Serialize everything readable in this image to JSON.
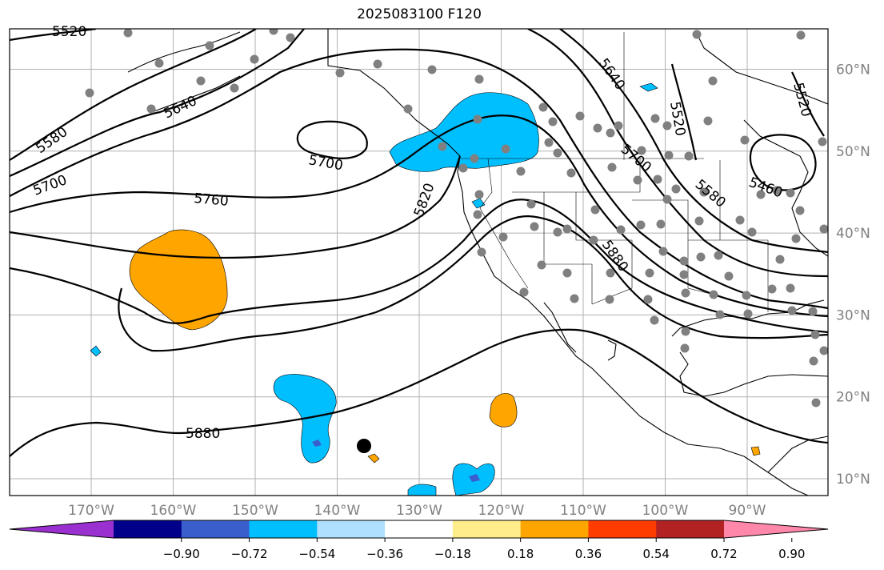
{
  "title": "2025083100 F120",
  "map": {
    "lat_ticks": [
      {
        "label": "60°N",
        "lat": 60
      },
      {
        "label": "50°N",
        "lat": 50
      },
      {
        "label": "40°N",
        "lat": 40
      },
      {
        "label": "30°N",
        "lat": 30
      },
      {
        "label": "20°N",
        "lat": 20
      },
      {
        "label": "10°N",
        "lat": 10
      }
    ],
    "lon_ticks": [
      {
        "label": "170°W",
        "lon": -170
      },
      {
        "label": "160°W",
        "lon": -160
      },
      {
        "label": "150°W",
        "lon": -150
      },
      {
        "label": "140°W",
        "lon": -140
      },
      {
        "label": "130°W",
        "lon": -130
      },
      {
        "label": "120°W",
        "lon": -120
      },
      {
        "label": "110°W",
        "lon": -110
      },
      {
        "label": "100°W",
        "lon": -100
      },
      {
        "label": "90°W",
        "lon": -90
      }
    ],
    "contour_labels": [
      "5520",
      "5580",
      "5640",
      "5700",
      "5760",
      "5820",
      "5880",
      "5460"
    ],
    "station_marker_color": "#808080",
    "storm_marker_color": "#000000"
  },
  "colorbar": {
    "colors": [
      "#9b30d0",
      "#00008b",
      "#3a5fcd",
      "#00bfff",
      "#afe0ff",
      "#ffffff",
      "#ffec8b",
      "#ffa500",
      "#ff3c00",
      "#b22222",
      "#ff88aa"
    ],
    "tick_labels": [
      "−0.90",
      "−0.72",
      "−0.54",
      "−0.36",
      "−0.18",
      "0.18",
      "0.36",
      "0.54",
      "0.72",
      "0.90"
    ]
  }
}
